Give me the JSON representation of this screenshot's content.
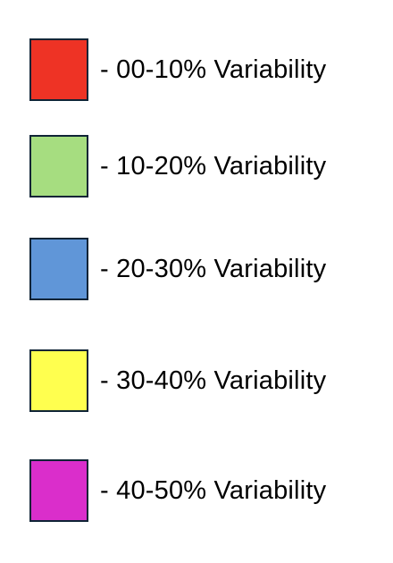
{
  "legend": {
    "items": [
      {
        "label": "- 00-10% Variability",
        "color": "#ee3325"
      },
      {
        "label": "- 10-20% Variability",
        "color": "#a6dd80"
      },
      {
        "label": "- 20-30% Variability",
        "color": "#6096d8"
      },
      {
        "label": "- 30-40% Variability",
        "color": "#ffff4f"
      },
      {
        "label": "- 40-50% Variability",
        "color": "#da2ecb"
      }
    ]
  }
}
